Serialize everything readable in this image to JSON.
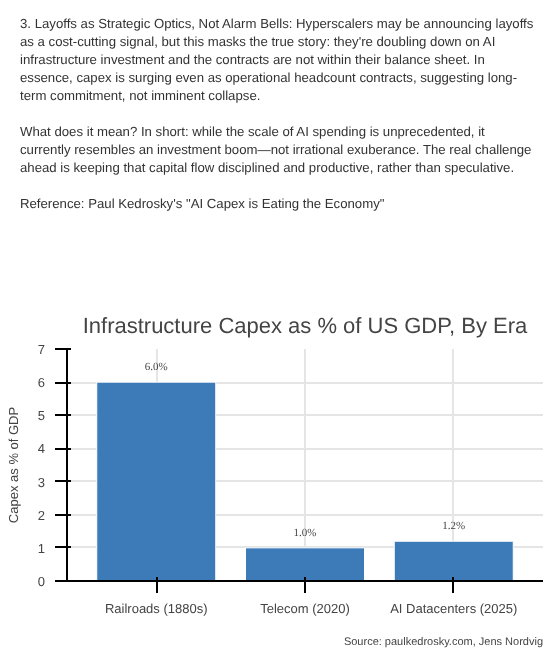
{
  "chart_data": {
    "type": "bar",
    "title": "Infrastructure Capex as % of US GDP, By Era",
    "ylabel": "Capex as % of GDP",
    "categories": [
      "Railroads (1880s)",
      "Telecom (2020)",
      "AI Datacenters (2025)"
    ],
    "values": [
      6.0,
      1.0,
      1.2
    ],
    "value_labels": [
      "6.0%",
      "1.0%",
      "1.2%"
    ],
    "color": "#3d7ab8",
    "ylim": [
      0,
      7
    ],
    "yticks": [
      0,
      1,
      2,
      3,
      4,
      5,
      6,
      7
    ],
    "grid": true,
    "annotations": [
      "3. Layoffs as Strategic Optics, Not Alarm Bells: Hyperscalers may be announcing layoffs as a cost-cutting signal, but this masks the true story: they're doubling down on AI infrastructure investment and the contracts are not within their balance sheet. In essence, capex is surging even as operational headcount contracts, suggesting long-term commitment, not imminent collapse.",
      "What does it mean? In short: while the scale of AI spending is unprecedented, it currently resembles an investment boom—not irrational exuberance. The real challenge ahead is keeping that capital flow disciplined and productive, rather than speculative.",
      "Reference: Paul Kedrosky's \"AI Capex is Eating the Economy\"",
      "Source: paulkedrosky.com, Jens Nordvig"
    ]
  }
}
